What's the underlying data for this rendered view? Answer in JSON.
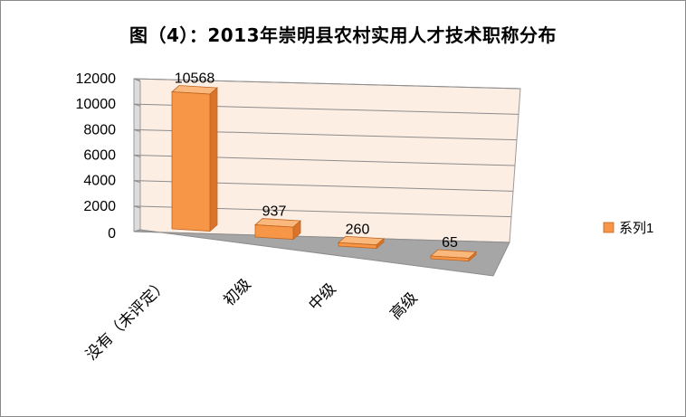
{
  "chart_data": {
    "type": "bar",
    "title": "图（4）：2013年崇明县农村实用人才技术职称分布",
    "categories": [
      "没有（未评定）",
      "初级",
      "中级",
      "高级"
    ],
    "series": [
      {
        "name": "系列1",
        "values": [
          10568,
          937,
          260,
          65
        ]
      }
    ],
    "yticks": [
      0,
      2000,
      4000,
      6000,
      8000,
      10000,
      12000
    ],
    "ylim": [
      0,
      12000
    ],
    "grid": true,
    "legend": "right",
    "style": "3d-column",
    "colors": {
      "bar": "#f79646",
      "bar_side": "#d9742a",
      "bar_top": "#fbb87d",
      "back_wall": "#fdeee4",
      "floor": "#a6a6a6"
    }
  }
}
